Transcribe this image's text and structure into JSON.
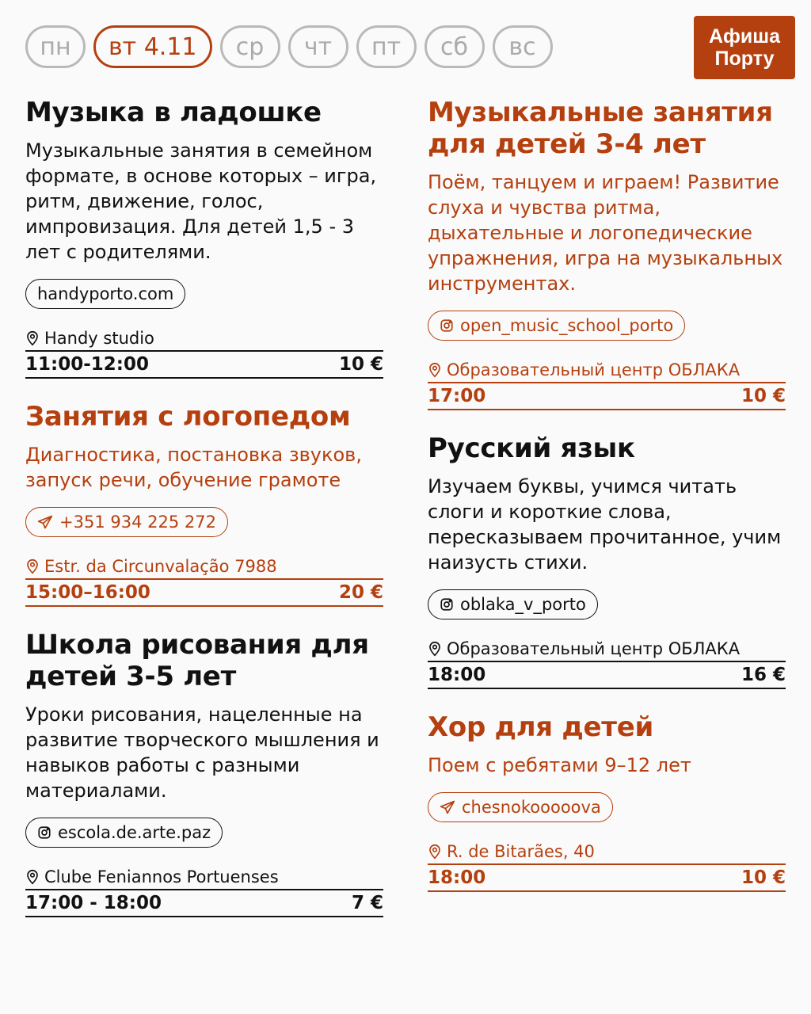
{
  "days": [
    {
      "label": "пн",
      "active": false
    },
    {
      "label": "вт 4.11",
      "active": true
    },
    {
      "label": "ср",
      "active": false
    },
    {
      "label": "чт",
      "active": false
    },
    {
      "label": "пт",
      "active": false
    },
    {
      "label": "сб",
      "active": false
    },
    {
      "label": "вс",
      "active": false
    }
  ],
  "logo": {
    "line1": "Афиша",
    "line2": "Порту"
  },
  "colors": {
    "accent": "#b5400f",
    "dark": "#111111",
    "inactive": "#b9b9b9"
  },
  "events": [
    {
      "column": "left",
      "style": "dark",
      "title": "Музыка в ладошке",
      "desc": "Музыкальные занятия в семейном формате, в основе которых – игра, ритм, движение, голос, импровизация. Для детей 1,5 - 3 лет с родителями.",
      "link": {
        "icon": "none",
        "text": "handyporto.com"
      },
      "location": "Handy studio",
      "time": "11:00-12:00",
      "price": "10 €"
    },
    {
      "column": "left",
      "style": "accent",
      "title": "Занятия с логопедом",
      "desc": "Диагностика, постановка звуков, запуск речи, обучение грамоте",
      "link": {
        "icon": "telegram-icon",
        "text": "+351 934 225 272"
      },
      "location": "Estr. da Circunvalação 7988",
      "time": "15:00–16:00",
      "price": "20 €"
    },
    {
      "column": "left",
      "style": "dark",
      "title": "Школа рисования для детей 3-5 лет",
      "desc": "Уроки рисования, нацеленные на развитие творческого мышления и навыков работы с разными материалами.",
      "link": {
        "icon": "instagram-icon",
        "text": "escola.de.arte.paz"
      },
      "location": "Clube Feniannos Portuenses",
      "time": "17:00 - 18:00",
      "price": "7 €"
    },
    {
      "column": "right",
      "style": "accent",
      "title": "Музыкальные занятия для детей 3-4 лет",
      "desc": "Поём, танцуем и играем! Развитие слуха и чувства ритма, дыхательные и логопедические упражнения, игра на музыкальных инструментах.",
      "link": {
        "icon": "instagram-icon",
        "text": "open_music_school_porto"
      },
      "location": "Образовательный центр ОБЛАКА",
      "time": "17:00",
      "price": "10 €"
    },
    {
      "column": "right",
      "style": "dark",
      "title": "Русский язык",
      "desc": "Изучаем буквы, учимся читать слоги и короткие слова, пересказываем прочитанное, учим наизусть стихи.",
      "link": {
        "icon": "instagram-icon",
        "text": "oblaka_v_porto"
      },
      "location": "Образовательный центр ОБЛАКА",
      "time": "18:00",
      "price": "16 €"
    },
    {
      "column": "right",
      "style": "accent",
      "title": "Хор для детей",
      "desc": "Поем с ребятами 9–12 лет",
      "link": {
        "icon": "telegram-icon",
        "text": "chesnokooooova"
      },
      "location": "R. de Bitarães, 40",
      "time": "18:00",
      "price": "10 €"
    }
  ]
}
